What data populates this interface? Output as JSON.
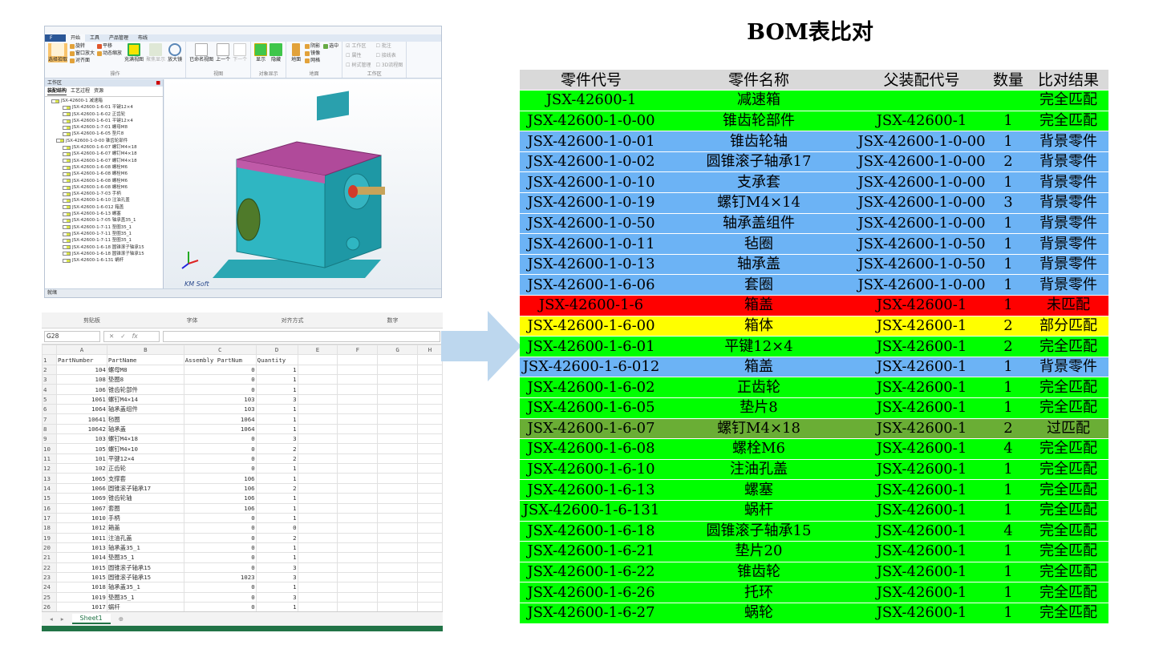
{
  "cad": {
    "tabs": [
      "F",
      "开始",
      "工具",
      "产品管理",
      "布线"
    ],
    "ribbon": {
      "op": {
        "label": "操作",
        "items": [
          "选择拾取",
          "旋转",
          "窗口放大",
          "对齐面",
          "平移",
          "动态缩放",
          "充满视图",
          "聚焦显示",
          "放大镜"
        ]
      },
      "view": {
        "label": "视图",
        "items": [
          "已命名视图",
          "上一个",
          "下一个"
        ]
      },
      "objshow": {
        "label": "对象显示",
        "items": [
          "显示",
          "隐藏"
        ]
      },
      "floor": {
        "label": "地面",
        "items": [
          "地面",
          "阴影",
          "选中",
          "镜像",
          "网格"
        ]
      },
      "workarea": {
        "label": "工作区",
        "items": [
          "工作区",
          "批注",
          "属性",
          "接线表",
          "树式管理",
          "3D流程图"
        ]
      }
    },
    "workspace": {
      "title": "工作区",
      "tabs": [
        "装配结构",
        "工艺过程",
        "资源"
      ],
      "tree": [
        "JSX-42600-1 减速箱",
        "JSX-42600-1-6-01 平键12×4",
        "JSX-42600-1-6-02 正齿轮",
        "JSX-42600-1-6-01 平键12×4",
        "JSX-42600-1-7-01 螺母M8",
        "JSX-42600-1-6-05 垫片8",
        "JSX-42600-1-0-00 锥齿轮部件",
        "JSX-42600-1-6-07 螺钉M4×18",
        "JSX-42600-1-6-07 螺钉M4×18",
        "JSX-42600-1-6-07 螺钉M4×18",
        "JSX-42600-1-6-08 螺栓M6",
        "JSX-42600-1-6-08 螺栓M6",
        "JSX-42600-1-6-08 螺栓M6",
        "JSX-42600-1-6-08 螺栓M6",
        "JSX-42600-1-7-03 手柄",
        "JSX-42600-1-6-10 注油孔盖",
        "JSX-42600-1-6-012 箱盖",
        "JSX-42600-1-6-13 螺塞",
        "JSX-42600-1-7-05 轴承盖35_1",
        "JSX-42600-1-7-11 垫圈35_1",
        "JSX-42600-1-7-11 垫圈35_1",
        "JSX-42600-1-7-11 垫圈35_1",
        "JSX-42600-1-6-18 圆锥滚子轴承15",
        "JSX-42600-1-6-18 圆锥滚子轴承15",
        "JSX-42600-1-6-131 蜗杆"
      ]
    },
    "status": "就绪",
    "logo": "KM Soft"
  },
  "excel": {
    "groups": [
      "剪贴板",
      "字体",
      "对齐方式",
      "数字"
    ],
    "namebox": "G28",
    "fx": [
      "✕",
      "✓",
      "fx"
    ],
    "cols": [
      "A",
      "B",
      "C",
      "D",
      "E",
      "F",
      "G",
      "H"
    ],
    "header": [
      "PartNumber",
      "PartName",
      "Assembly PartNum",
      "Quantity"
    ],
    "rows": [
      [
        "104",
        "螺母M8",
        "0",
        "1"
      ],
      [
        "108",
        "垫圈8",
        "0",
        "1"
      ],
      [
        "106",
        "锥齿轮部件",
        "0",
        "1"
      ],
      [
        "1061",
        "螺钉M4×14",
        "103",
        "3"
      ],
      [
        "1064",
        "轴承盖组件",
        "103",
        "1"
      ],
      [
        "10641",
        "毡圈",
        "1064",
        "1"
      ],
      [
        "10642",
        "轴承盖",
        "1064",
        "1"
      ],
      [
        "103",
        "螺钉M4×18",
        "0",
        "3"
      ],
      [
        "105",
        "螺钉M4×10",
        "0",
        "2"
      ],
      [
        "101",
        "平键12×4",
        "0",
        "2"
      ],
      [
        "102",
        "正齿轮",
        "0",
        "1"
      ],
      [
        "1065",
        "支撑套",
        "106",
        "1"
      ],
      [
        "1066",
        "圆锥滚子轴承17",
        "106",
        "2"
      ],
      [
        "1069",
        "锥齿轮轴",
        "106",
        "1"
      ],
      [
        "1067",
        "套圈",
        "106",
        "1"
      ],
      [
        "1010",
        "手柄",
        "0",
        "1"
      ],
      [
        "1012",
        "箱盖",
        "0",
        "0"
      ],
      [
        "1011",
        "注油孔盖",
        "0",
        "2"
      ],
      [
        "1013",
        "轴承盖35_1",
        "0",
        "1"
      ],
      [
        "1014",
        "垫圈35_1",
        "0",
        "1"
      ],
      [
        "1015",
        "圆锥滚子轴承15",
        "0",
        "3"
      ],
      [
        "1015",
        "圆锥滚子轴承15",
        "1023",
        "3"
      ],
      [
        "1018",
        "轴承盖35_1",
        "0",
        "1"
      ],
      [
        "1019",
        "垫圈35_1",
        "0",
        "3"
      ],
      [
        "1017",
        "蜗杆",
        "0",
        "1"
      ]
    ],
    "sheet": "Sheet1"
  },
  "bom": {
    "title": "BOM表比对",
    "headers": [
      "零件代号",
      "零件名称",
      "父装配代号",
      "数量",
      "比对结果"
    ],
    "colors": {
      "完全匹配": "#00ff00",
      "背景零件": "#6cb3f5",
      "未匹配": "#ff0000",
      "部分匹配": "#ffff00",
      "过匹配": "#6aae35"
    },
    "rows": [
      [
        "JSX-42600-1",
        "减速箱",
        "",
        "",
        "完全匹配"
      ],
      [
        "JSX-42600-1-0-00",
        "锥齿轮部件",
        "JSX-42600-1",
        "1",
        "完全匹配"
      ],
      [
        "JSX-42600-1-0-01",
        "锥齿轮轴",
        "JSX-42600-1-0-00",
        "1",
        "背景零件"
      ],
      [
        "JSX-42600-1-0-02",
        "圆锥滚子轴承17",
        "JSX-42600-1-0-00",
        "2",
        "背景零件"
      ],
      [
        "JSX-42600-1-0-10",
        "支承套",
        "JSX-42600-1-0-00",
        "1",
        "背景零件"
      ],
      [
        "JSX-42600-1-0-19",
        "螺钉M4×14",
        "JSX-42600-1-0-00",
        "3",
        "背景零件"
      ],
      [
        "JSX-42600-1-0-50",
        "轴承盖组件",
        "JSX-42600-1-0-00",
        "1",
        "背景零件"
      ],
      [
        "JSX-42600-1-0-11",
        "毡圈",
        "JSX-42600-1-0-50",
        "1",
        "背景零件"
      ],
      [
        "JSX-42600-1-0-13",
        "轴承盖",
        "JSX-42600-1-0-50",
        "1",
        "背景零件"
      ],
      [
        "JSX-42600-1-6-06",
        "套圈",
        "JSX-42600-1-0-00",
        "1",
        "背景零件"
      ],
      [
        "JSX-42600-1-6",
        "箱盖",
        "JSX-42600-1",
        "1",
        "未匹配"
      ],
      [
        "JSX-42600-1-6-00",
        "箱体",
        "JSX-42600-1",
        "2",
        "部分匹配"
      ],
      [
        "JSX-42600-1-6-01",
        "平键12×4",
        "JSX-42600-1",
        "2",
        "完全匹配"
      ],
      [
        "JSX-42600-1-6-012",
        "箱盖",
        "JSX-42600-1",
        "1",
        "背景零件"
      ],
      [
        "JSX-42600-1-6-02",
        "正齿轮",
        "JSX-42600-1",
        "1",
        "完全匹配"
      ],
      [
        "JSX-42600-1-6-05",
        "垫片8",
        "JSX-42600-1",
        "1",
        "完全匹配"
      ],
      [
        "JSX-42600-1-6-07",
        "螺钉M4×18",
        "JSX-42600-1",
        "2",
        "过匹配"
      ],
      [
        "JSX-42600-1-6-08",
        "螺栓M6",
        "JSX-42600-1",
        "4",
        "完全匹配"
      ],
      [
        "JSX-42600-1-6-10",
        "注油孔盖",
        "JSX-42600-1",
        "1",
        "完全匹配"
      ],
      [
        "JSX-42600-1-6-13",
        "螺塞",
        "JSX-42600-1",
        "1",
        "完全匹配"
      ],
      [
        "JSX-42600-1-6-131",
        "蜗杆",
        "JSX-42600-1",
        "1",
        "完全匹配"
      ],
      [
        "JSX-42600-1-6-18",
        "圆锥滚子轴承15",
        "JSX-42600-1",
        "4",
        "完全匹配"
      ],
      [
        "JSX-42600-1-6-21",
        "垫片20",
        "JSX-42600-1",
        "1",
        "完全匹配"
      ],
      [
        "JSX-42600-1-6-22",
        "锥齿轮",
        "JSX-42600-1",
        "1",
        "完全匹配"
      ],
      [
        "JSX-42600-1-6-26",
        "托环",
        "JSX-42600-1",
        "1",
        "完全匹配"
      ],
      [
        "JSX-42600-1-6-27",
        "蜗轮",
        "JSX-42600-1",
        "1",
        "完全匹配"
      ]
    ]
  }
}
